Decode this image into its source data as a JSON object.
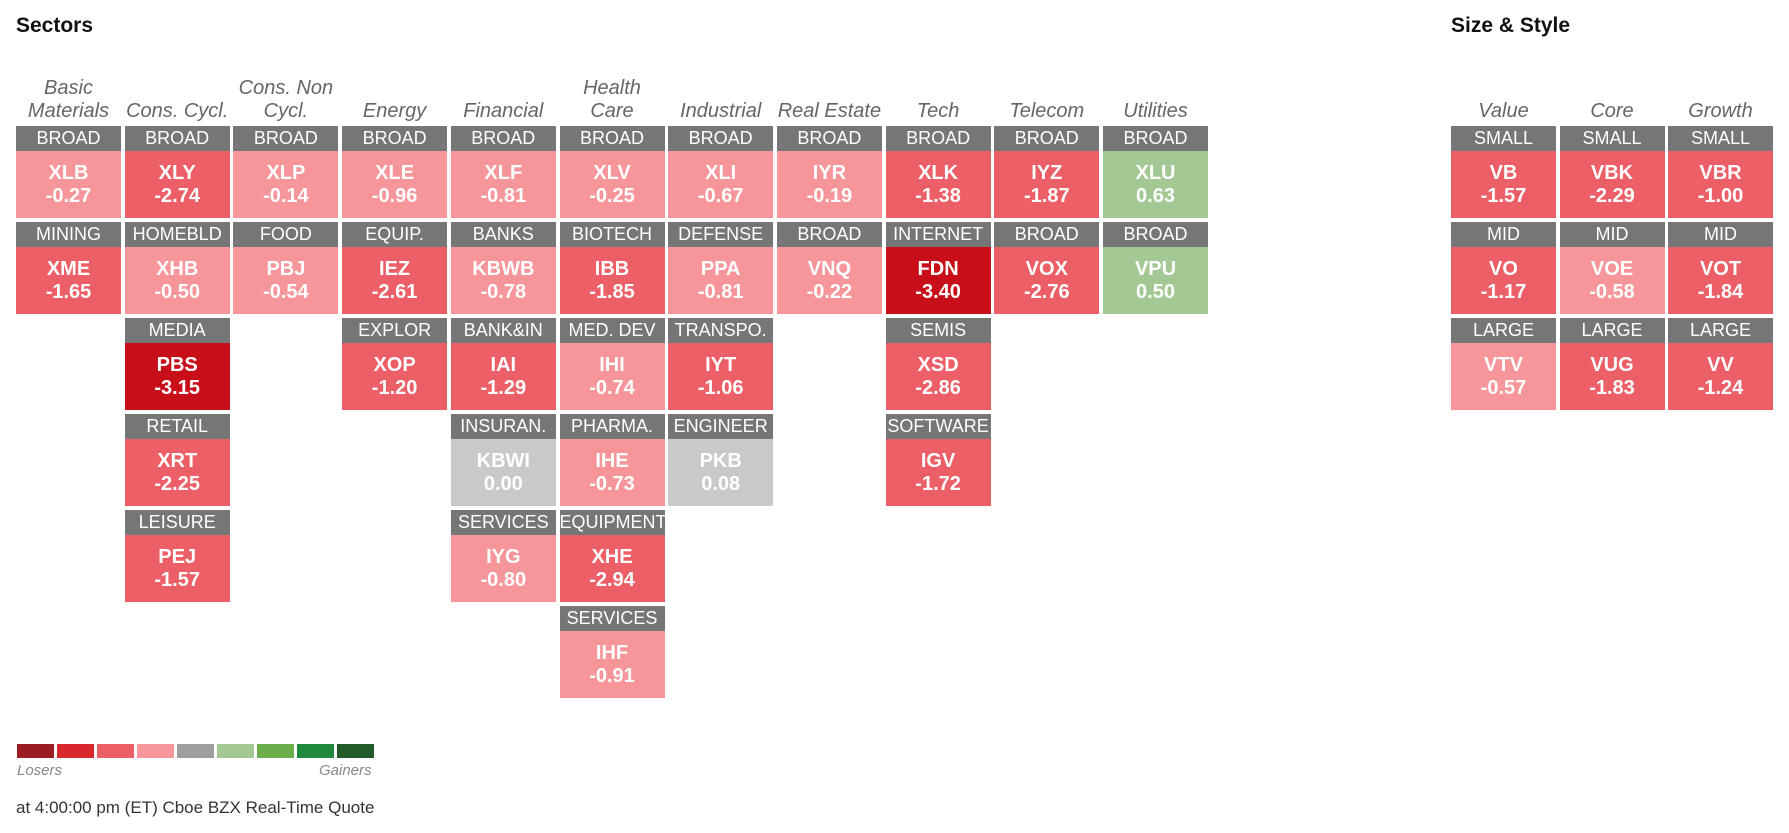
{
  "sectors": {
    "title": "Sectors",
    "columns": [
      {
        "header": [
          "Basic",
          "Materials"
        ],
        "tiles": [
          {
            "label": "BROAD",
            "ticker": "XLB",
            "value": "-0.27"
          },
          {
            "label": "MINING",
            "ticker": "XME",
            "value": "-1.65"
          }
        ]
      },
      {
        "header": [
          "Cons. Cycl."
        ],
        "tiles": [
          {
            "label": "BROAD",
            "ticker": "XLY",
            "value": "-2.74"
          },
          {
            "label": "HOMEBLD",
            "ticker": "XHB",
            "value": "-0.50"
          },
          {
            "label": "MEDIA",
            "ticker": "PBS",
            "value": "-3.15"
          },
          {
            "label": "RETAIL",
            "ticker": "XRT",
            "value": "-2.25"
          },
          {
            "label": "LEISURE",
            "ticker": "PEJ",
            "value": "-1.57"
          }
        ]
      },
      {
        "header": [
          "Cons. Non",
          "Cycl."
        ],
        "tiles": [
          {
            "label": "BROAD",
            "ticker": "XLP",
            "value": "-0.14"
          },
          {
            "label": "FOOD",
            "ticker": "PBJ",
            "value": "-0.54"
          }
        ]
      },
      {
        "header": [
          "Energy"
        ],
        "tiles": [
          {
            "label": "BROAD",
            "ticker": "XLE",
            "value": "-0.96"
          },
          {
            "label": "EQUIP.",
            "ticker": "IEZ",
            "value": "-2.61"
          },
          {
            "label": "EXPLOR",
            "ticker": "XOP",
            "value": "-1.20"
          }
        ]
      },
      {
        "header": [
          "Financial"
        ],
        "tiles": [
          {
            "label": "BROAD",
            "ticker": "XLF",
            "value": "-0.81"
          },
          {
            "label": "BANKS",
            "ticker": "KBWB",
            "value": "-0.78"
          },
          {
            "label": "BANK&IN",
            "ticker": "IAI",
            "value": "-1.29"
          },
          {
            "label": "INSURAN.",
            "ticker": "KBWI",
            "value": "0.00"
          },
          {
            "label": "SERVICES",
            "ticker": "IYG",
            "value": "-0.80"
          }
        ]
      },
      {
        "header": [
          "Health",
          "Care"
        ],
        "tiles": [
          {
            "label": "BROAD",
            "ticker": "XLV",
            "value": "-0.25"
          },
          {
            "label": "BIOTECH",
            "ticker": "IBB",
            "value": "-1.85"
          },
          {
            "label": "MED. DEV",
            "ticker": "IHI",
            "value": "-0.74"
          },
          {
            "label": "PHARMA.",
            "ticker": "IHE",
            "value": "-0.73"
          },
          {
            "label": "EQUIPMENT",
            "ticker": "XHE",
            "value": "-2.94"
          },
          {
            "label": "SERVICES",
            "ticker": "IHF",
            "value": "-0.91"
          }
        ]
      },
      {
        "header": [
          "Industrial"
        ],
        "tiles": [
          {
            "label": "BROAD",
            "ticker": "XLI",
            "value": "-0.67"
          },
          {
            "label": "DEFENSE",
            "ticker": "PPA",
            "value": "-0.81"
          },
          {
            "label": "TRANSPO.",
            "ticker": "IYT",
            "value": "-1.06"
          },
          {
            "label": "ENGINEER",
            "ticker": "PKB",
            "value": "0.08"
          }
        ]
      },
      {
        "header": [
          "Real Estate"
        ],
        "tiles": [
          {
            "label": "BROAD",
            "ticker": "IYR",
            "value": "-0.19"
          },
          {
            "label": "BROAD",
            "ticker": "VNQ",
            "value": "-0.22"
          }
        ]
      },
      {
        "header": [
          "Tech"
        ],
        "tiles": [
          {
            "label": "BROAD",
            "ticker": "XLK",
            "value": "-1.38"
          },
          {
            "label": "INTERNET",
            "ticker": "FDN",
            "value": "-3.40"
          },
          {
            "label": "SEMIS",
            "ticker": "XSD",
            "value": "-2.86"
          },
          {
            "label": "SOFTWARE",
            "ticker": "IGV",
            "value": "-1.72"
          }
        ]
      },
      {
        "header": [
          "Telecom"
        ],
        "tiles": [
          {
            "label": "BROAD",
            "ticker": "IYZ",
            "value": "-1.87"
          },
          {
            "label": "BROAD",
            "ticker": "VOX",
            "value": "-2.76"
          }
        ]
      },
      {
        "header": [
          "Utilities"
        ],
        "tiles": [
          {
            "label": "BROAD",
            "ticker": "XLU",
            "value": "0.63"
          },
          {
            "label": "BROAD",
            "ticker": "VPU",
            "value": "0.50"
          }
        ]
      }
    ]
  },
  "size_style": {
    "title": "Size & Style",
    "columns": [
      {
        "header": [
          "Value"
        ],
        "tiles": [
          {
            "label": "SMALL",
            "ticker": "VB",
            "value": "-1.57"
          },
          {
            "label": "MID",
            "ticker": "VO",
            "value": "-1.17"
          },
          {
            "label": "LARGE",
            "ticker": "VTV",
            "value": "-0.57"
          }
        ]
      },
      {
        "header": [
          "Core"
        ],
        "tiles": [
          {
            "label": "SMALL",
            "ticker": "VBK",
            "value": "-2.29"
          },
          {
            "label": "MID",
            "ticker": "VOE",
            "value": "-0.58"
          },
          {
            "label": "LARGE",
            "ticker": "VUG",
            "value": "-1.83"
          }
        ]
      },
      {
        "header": [
          "Growth"
        ],
        "tiles": [
          {
            "label": "SMALL",
            "ticker": "VBR",
            "value": "-1.00"
          },
          {
            "label": "MID",
            "ticker": "VOT",
            "value": "-1.84"
          },
          {
            "label": "LARGE",
            "ticker": "VV",
            "value": "-1.24"
          }
        ]
      }
    ]
  },
  "legend": {
    "losers_label": "Losers",
    "gainers_label": "Gainers",
    "swatch_colors": [
      "#9b1c23",
      "#d9272e",
      "#ec5f66",
      "#f7969a",
      "#9e9e9e",
      "#a3c893",
      "#6aae4e",
      "#1f8a3d",
      "#235a2a"
    ]
  },
  "colors": {
    "neg_light": "#f7969a",
    "neg_medium": "#ec5f66",
    "neg_dark": "#c70e19",
    "neutral": "#c9c9c9",
    "pos_light": "#a3c893",
    "label_bg": "#767676"
  },
  "footer": "at 4:00:00 pm (ET) Cboe BZX Real-Time Quote"
}
